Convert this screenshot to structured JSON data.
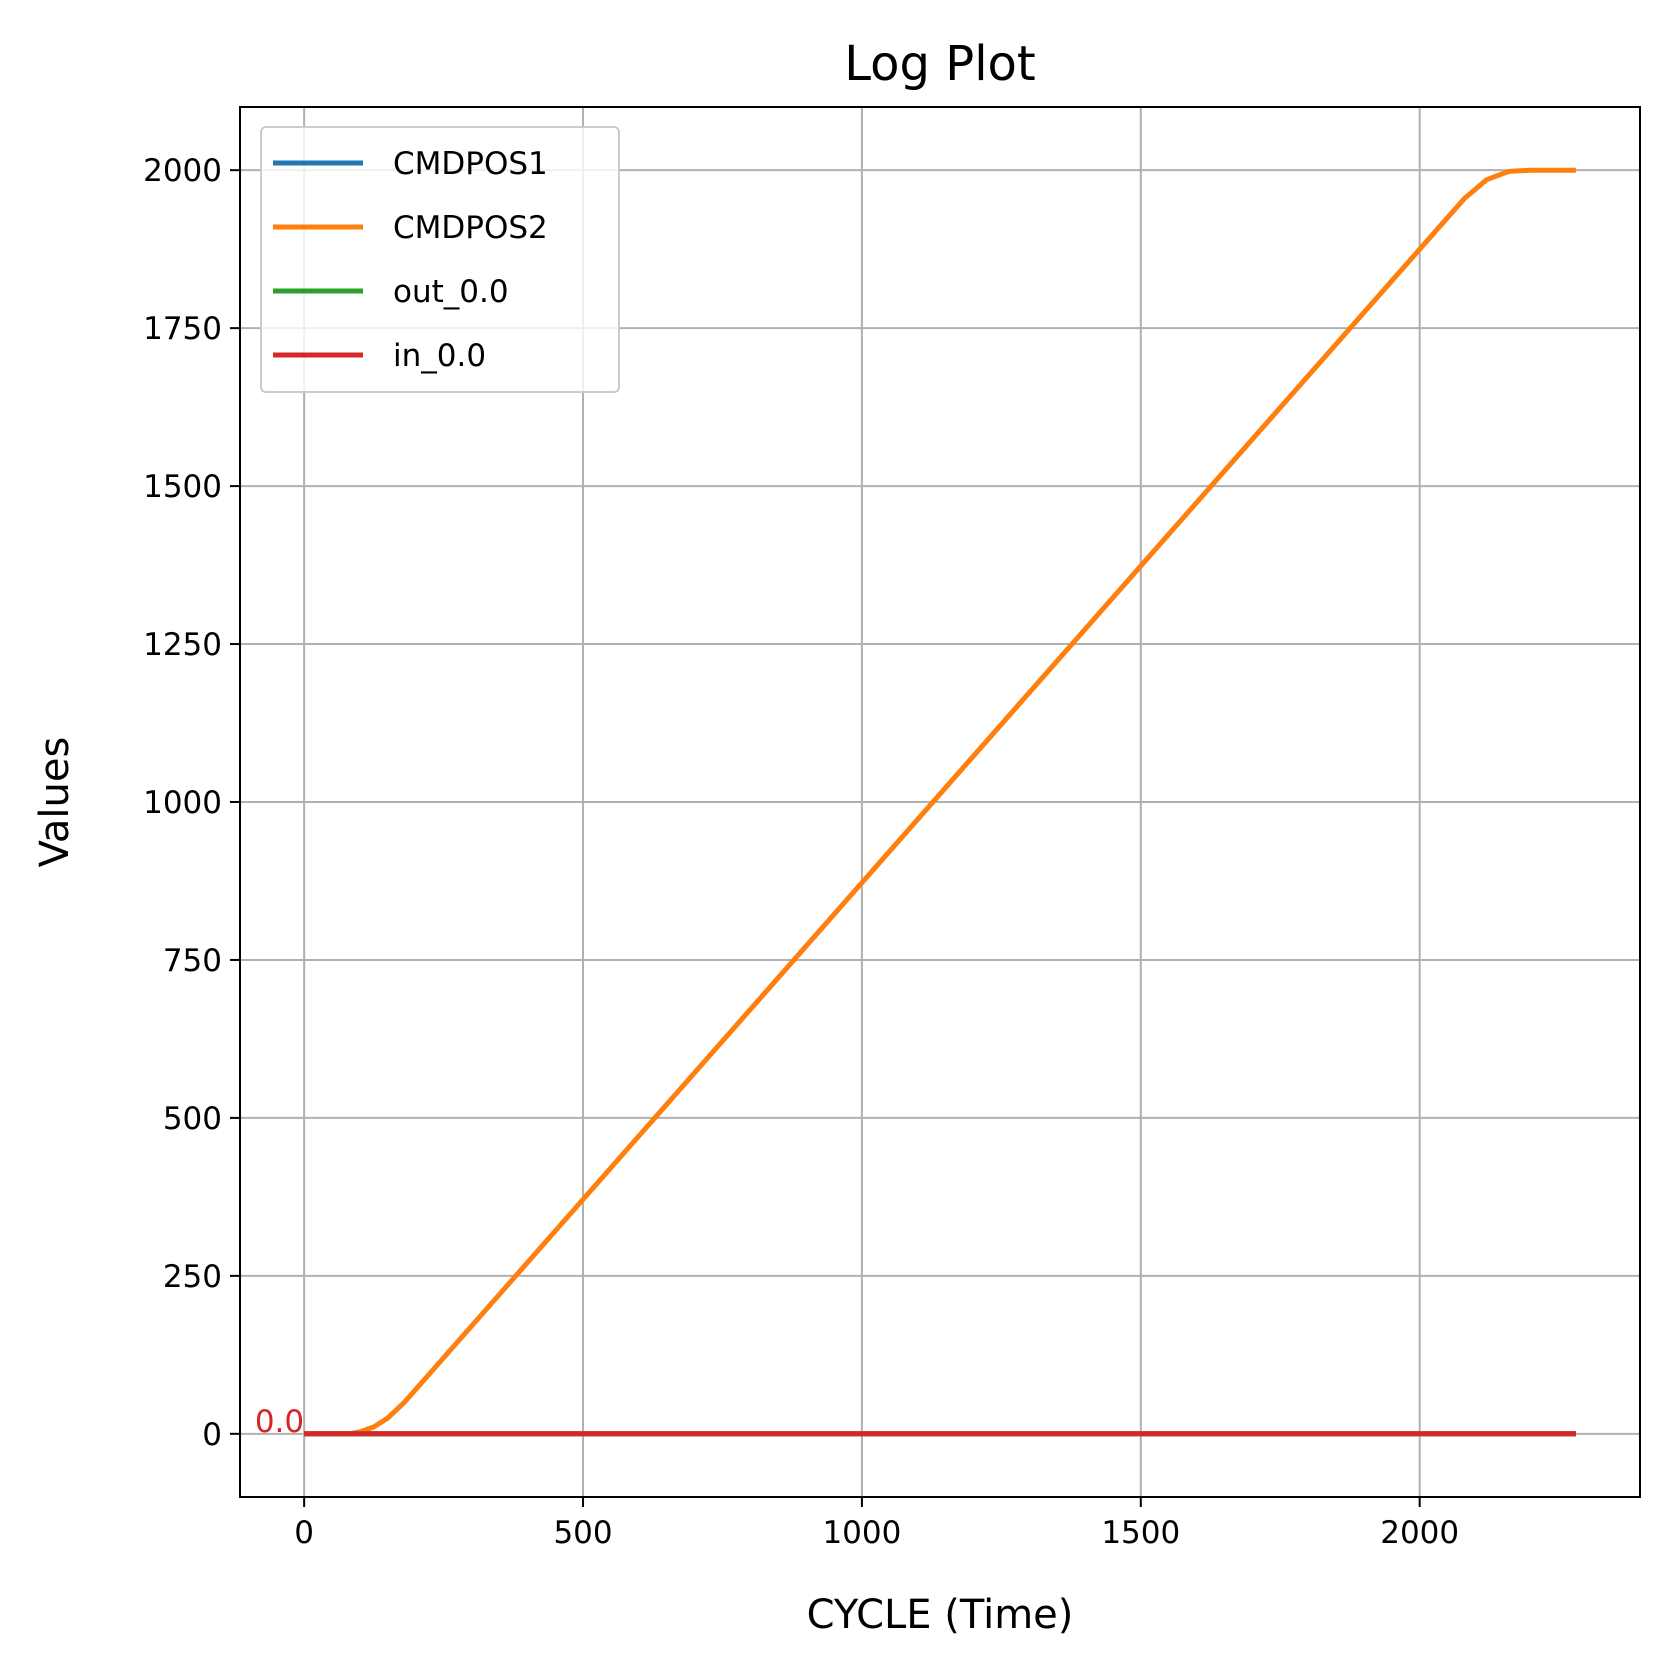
{
  "chart_data": {
    "type": "line",
    "title": "Log Plot",
    "xlabel": "CYCLE (Time)",
    "ylabel": "Values",
    "xlim": [
      -115,
      2395
    ],
    "ylim": [
      -100,
      2100
    ],
    "xticks": [
      0,
      500,
      1000,
      1500,
      2000
    ],
    "yticks": [
      0,
      250,
      500,
      750,
      1000,
      1250,
      1500,
      1750,
      2000
    ],
    "grid": true,
    "legend_position": "top-left",
    "series": [
      {
        "name": "CMDPOS1",
        "color": "#1f77b4",
        "x": [
          0,
          2280
        ],
        "y": [
          0,
          0
        ]
      },
      {
        "name": "CMDPOS2",
        "color": "#ff7f0e",
        "x": [
          0,
          80,
          100,
          125,
          150,
          180,
          2000,
          2080,
          2120,
          2160,
          2200,
          2280
        ],
        "y": [
          0,
          0,
          3,
          11,
          25,
          50,
          1875,
          1955,
          1985,
          1998,
          2000,
          2000
        ]
      },
      {
        "name": "out_0.0",
        "color": "#2ca02c",
        "x": [
          0,
          2280
        ],
        "y": [
          0,
          0
        ]
      },
      {
        "name": "in_0.0",
        "color": "#d62728",
        "x": [
          0,
          2280
        ],
        "y": [
          0,
          0
        ]
      }
    ],
    "annotations": [
      {
        "text": "0.0",
        "x": 0,
        "y": 0,
        "color": "#d62728"
      }
    ]
  }
}
